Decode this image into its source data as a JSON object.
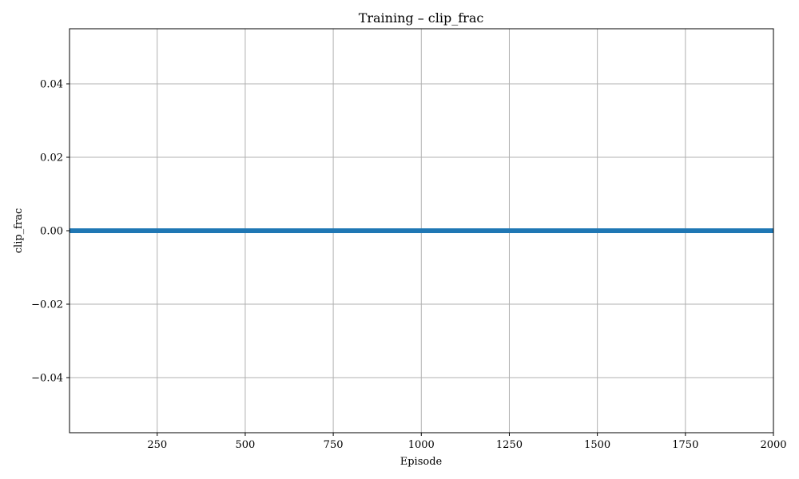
{
  "chart_data": {
    "type": "line",
    "title": "Training – clip_frac",
    "xlabel": "Episode",
    "ylabel": "clip_frac",
    "xlim": [
      1,
      2000
    ],
    "ylim": [
      -0.055,
      0.055
    ],
    "x_ticks": [
      250,
      500,
      750,
      1000,
      1250,
      1500,
      1750,
      2000
    ],
    "y_ticks": [
      -0.04,
      -0.02,
      0.0,
      0.02,
      0.04
    ],
    "x_tick_labels": [
      "250",
      "500",
      "750",
      "1000",
      "1250",
      "1500",
      "1750",
      "2000"
    ],
    "y_tick_labels": [
      "−0.04",
      "−0.02",
      "0.00",
      "0.02",
      "0.04"
    ],
    "grid": true,
    "legend": "none",
    "series": [
      {
        "color": "#1f77b4",
        "x": [
          1,
          2000
        ],
        "y": [
          0.0,
          0.0
        ]
      }
    ]
  }
}
